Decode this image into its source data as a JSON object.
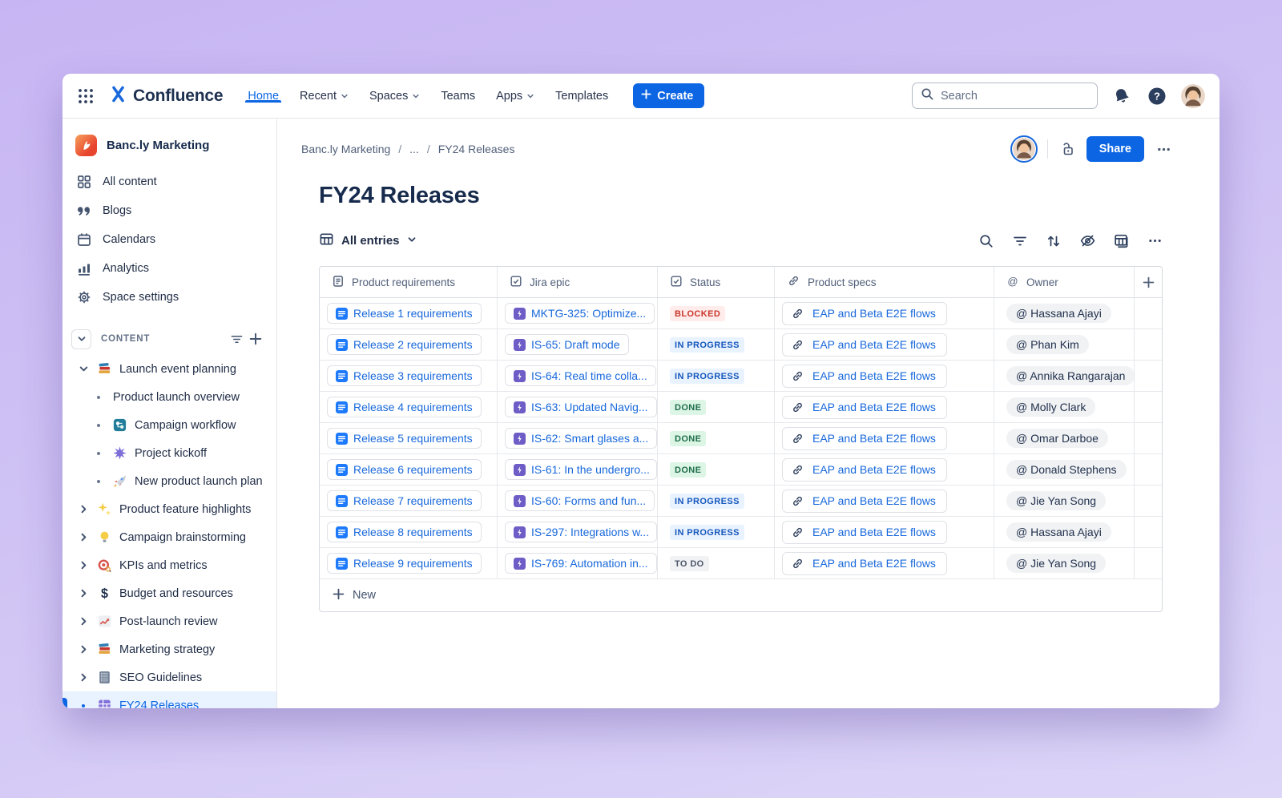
{
  "topnav": {
    "logo_text": "Confluence",
    "items": [
      {
        "label": "Home",
        "active": true,
        "caret": false
      },
      {
        "label": "Recent",
        "active": false,
        "caret": true
      },
      {
        "label": "Spaces",
        "active": false,
        "caret": true
      },
      {
        "label": "Teams",
        "active": false,
        "caret": false
      },
      {
        "label": "Apps",
        "active": false,
        "caret": true
      },
      {
        "label": "Templates",
        "active": false,
        "caret": false
      }
    ],
    "create_label": "Create",
    "search_placeholder": "Search"
  },
  "sidebar": {
    "space_name": "Banc.ly Marketing",
    "items": [
      {
        "label": "All content",
        "icon": "grid"
      },
      {
        "label": "Blogs",
        "icon": "quotes"
      },
      {
        "label": "Calendars",
        "icon": "calendar"
      },
      {
        "label": "Analytics",
        "icon": "bars"
      },
      {
        "label": "Space settings",
        "icon": "gear"
      }
    ],
    "content_header": "CONTENT",
    "tree": [
      {
        "label": "Launch event planning",
        "icon": "books",
        "marker": "expand",
        "level": 0,
        "selected": false
      },
      {
        "label": "Product launch overview",
        "icon": "none",
        "marker": "bullet",
        "level": 1,
        "selected": false
      },
      {
        "label": "Campaign workflow",
        "icon": "workflow",
        "marker": "bullet",
        "level": 1,
        "selected": false
      },
      {
        "label": "Project kickoff",
        "icon": "burst",
        "marker": "bullet",
        "level": 1,
        "selected": false
      },
      {
        "label": "New product launch plan",
        "icon": "rocket",
        "marker": "bullet",
        "level": 1,
        "selected": false
      },
      {
        "label": "Product feature highlights",
        "icon": "sparkles",
        "marker": "collapse",
        "level": 0,
        "selected": false
      },
      {
        "label": "Campaign brainstorming",
        "icon": "bulb",
        "marker": "collapse",
        "level": 0,
        "selected": false
      },
      {
        "label": "KPIs and metrics",
        "icon": "target",
        "marker": "collapse",
        "level": 0,
        "selected": false
      },
      {
        "label": "Budget and resources",
        "icon": "dollar",
        "marker": "collapse",
        "level": 0,
        "selected": false
      },
      {
        "label": "Post-launch review",
        "icon": "chart",
        "marker": "collapse",
        "level": 0,
        "selected": false
      },
      {
        "label": "Marketing strategy",
        "icon": "books",
        "marker": "collapse",
        "level": 0,
        "selected": false
      },
      {
        "label": "SEO Guidelines",
        "icon": "notebook",
        "marker": "collapse",
        "level": 0,
        "selected": false
      },
      {
        "label": "FY24 Releases",
        "icon": "table",
        "marker": "bullet",
        "level": 0,
        "selected": true
      }
    ]
  },
  "main": {
    "breadcrumb": [
      "Banc.ly Marketing",
      "...",
      "FY24 Releases"
    ],
    "breadcrumb_separator": "/",
    "actions": {
      "share_label": "Share"
    },
    "page_title": "FY24 Releases",
    "view_selector": {
      "label": "All entries"
    },
    "toolbar_icons": [
      "search",
      "filter",
      "sort",
      "hide",
      "grid",
      "more"
    ],
    "table": {
      "columns": [
        {
          "label": "Product requirements",
          "icon": "doc-outline"
        },
        {
          "label": "Jira epic",
          "icon": "checkbox"
        },
        {
          "label": "Status",
          "icon": "checkbox"
        },
        {
          "label": "Product specs",
          "icon": "link"
        },
        {
          "label": "Owner",
          "icon": "at"
        }
      ],
      "rows": [
        {
          "requirement": "Release 1 requirements",
          "epic": "MKTG-325: Optimize...",
          "status": "BLOCKED",
          "status_type": "blocked",
          "spec": "EAP and Beta E2E flows",
          "owner": "@ Hassana Ajayi"
        },
        {
          "requirement": "Release 2 requirements",
          "epic": "IS-65: Draft mode",
          "status": "IN PROGRESS",
          "status_type": "inprogress",
          "spec": "EAP and Beta E2E flows",
          "owner": "@ Phan Kim"
        },
        {
          "requirement": "Release 3 requirements",
          "epic": "IS-64: Real time colla...",
          "status": "IN PROGRESS",
          "status_type": "inprogress",
          "spec": "EAP and Beta E2E flows",
          "owner": "@ Annika Rangarajan"
        },
        {
          "requirement": "Release 4 requirements",
          "epic": "IS-63: Updated Navig...",
          "status": "DONE",
          "status_type": "done",
          "spec": "EAP and Beta E2E flows",
          "owner": "@ Molly Clark"
        },
        {
          "requirement": "Release 5 requirements",
          "epic": "IS-62: Smart glases a...",
          "status": "DONE",
          "status_type": "done",
          "spec": "EAP and Beta E2E flows",
          "owner": "@ Omar Darboe"
        },
        {
          "requirement": "Release 6 requirements",
          "epic": "IS-61: In the undergro...",
          "status": "DONE",
          "status_type": "done",
          "spec": "EAP and Beta E2E flows",
          "owner": "@ Donald Stephens"
        },
        {
          "requirement": "Release 7 requirements",
          "epic": "IS-60: Forms and fun...",
          "status": "IN PROGRESS",
          "status_type": "inprogress",
          "spec": "EAP and Beta E2E flows",
          "owner": "@ Jie Yan Song"
        },
        {
          "requirement": "Release 8 requirements",
          "epic": "IS-297: Integrations w...",
          "status": "IN PROGRESS",
          "status_type": "inprogress",
          "spec": "EAP and Beta E2E flows",
          "owner": "@ Hassana Ajayi"
        },
        {
          "requirement": "Release 9 requirements",
          "epic": "IS-769: Automation in...",
          "status": "TO DO",
          "status_type": "todo",
          "spec": "EAP and Beta E2E flows",
          "owner": "@ Jie Yan Song"
        }
      ],
      "new_label": "New"
    }
  },
  "colors": {
    "accent_blue": "#0C66E4",
    "link_blue": "#1868DB",
    "epic_purple": "#6E5DC6",
    "blocked_text": "#C9372C",
    "blocked_bg": "#FFECEB",
    "inprogress_text": "#1558BC",
    "inprogress_bg": "#E9F2FF",
    "done_text": "#216E4E",
    "done_bg": "#DCF5E5",
    "todo_text": "#4B566B",
    "todo_bg": "#F1F2F4",
    "selected_bg": "#E9F2FF"
  }
}
